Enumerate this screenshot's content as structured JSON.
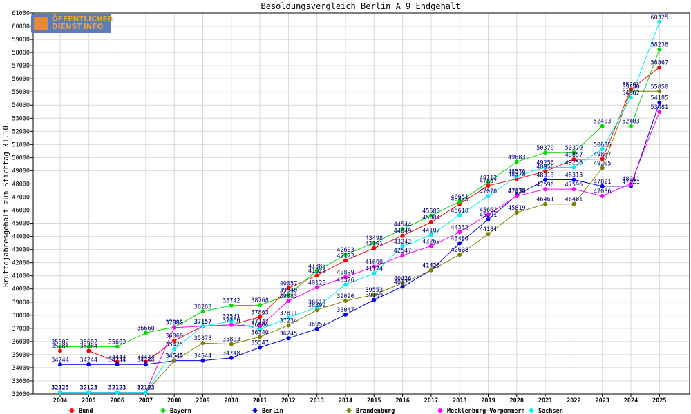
{
  "logo": {
    "line1": "ÖFFENTLICHER",
    "line2": "DIENST.INFO"
  },
  "chart_data": {
    "type": "line",
    "title": "Besoldungsvergleich Berlin A 9 Endgehalt",
    "xlabel": "",
    "ylabel": "Bruttojahresgehalt zum Stichtag 31.10.",
    "ylim": [
      32000,
      61000
    ],
    "y_ticks": [
      32000,
      33000,
      34000,
      35000,
      36000,
      37000,
      38000,
      39000,
      40000,
      41000,
      42000,
      43000,
      44000,
      45000,
      46000,
      47000,
      48000,
      49000,
      50000,
      51000,
      52000,
      53000,
      54000,
      55000,
      56000,
      57000,
      58000,
      59000,
      60000,
      61000
    ],
    "grid": true,
    "legend_position": "bottom",
    "categories": [
      "2004",
      "2005",
      "2006",
      "2007",
      "2008",
      "2009",
      "2010",
      "2011",
      "2012",
      "2013",
      "2014",
      "2015",
      "2016",
      "2017",
      "2018",
      "2019",
      "2020",
      "2021",
      "2022",
      "2023",
      "2024",
      "2025"
    ],
    "series": [
      {
        "name": "Bund",
        "color": "#ff0000",
        "values": [
          35284,
          35284,
          34444,
          34444,
          36060,
          37157,
          37266,
          37863,
          40057,
          41024,
          42173,
          43101,
          44049,
          45084,
          46475,
          47867,
          48378,
          48956,
          49857,
          49887,
          55201,
          56867
        ],
        "labels": [
          "35284",
          "35284",
          "34444",
          "34444",
          "36060",
          "37157",
          "37266",
          "37863",
          "40057",
          "41024",
          "42173",
          "43101",
          "44049",
          "45084",
          "46475",
          "47867",
          "48378",
          "48956",
          "49857",
          "49887",
          "55201",
          "56867"
        ]
      },
      {
        "name": "Bayern",
        "color": "#00dd00",
        "values": [
          35602,
          35602,
          35602,
          36660,
          37092,
          38283,
          38742,
          38768,
          39540,
          41383,
          42603,
          43498,
          44544,
          45580,
          46651,
          48112,
          49683,
          50379,
          50379,
          52403,
          52403,
          58238
        ],
        "labels": [
          "35602",
          "35602",
          "35602",
          "36660",
          "37092",
          "38283",
          "38742",
          "38768",
          "39540",
          "41383",
          "42603",
          "43498",
          "44544",
          "45580",
          "46651",
          "48112",
          "49683",
          "50379",
          "50379",
          "52403",
          "52403",
          "58238"
        ]
      },
      {
        "name": "Berlin",
        "color": "#0000ee",
        "values": [
          34244,
          34244,
          34244,
          34244,
          34544,
          34544,
          34748,
          35547,
          36245,
          36957,
          38047,
          39169,
          40177,
          41426,
          43486,
          45291,
          47138,
          48313,
          48313,
          47821,
          47821,
          54185
        ],
        "labels": [
          "34244",
          "34244",
          "34244",
          "34244",
          "34544",
          "34544",
          "34748",
          "35547",
          "36245",
          "36957",
          "38047",
          "39169",
          "40177",
          "41426",
          "43486",
          "45291",
          "47138",
          "48313",
          "48313",
          "47821",
          "47821",
          "54185"
        ]
      },
      {
        "name": "Brandenburg",
        "color": "#808000",
        "values": [
          32123,
          32123,
          32123,
          32123,
          34545,
          35878,
          35803,
          36340,
          37234,
          38399,
          39090,
          39553,
          40436,
          41426,
          42608,
          44184,
          45819,
          46461,
          46461,
          49205,
          55050,
          55050
        ],
        "labels": [
          "32123",
          "32123",
          "32123",
          "32123",
          "34545",
          "35878",
          "35803",
          "36340",
          "37234",
          "38399",
          "39090",
          "39553",
          "40436",
          "41426",
          "42608",
          "44184",
          "45819",
          "46461",
          "46461",
          "49205",
          "55050",
          "55050"
        ]
      },
      {
        "name": "Mecklenburg-Vorpommern",
        "color": "#ff00ff",
        "values": [
          32123,
          32123,
          32123,
          32123,
          37060,
          37157,
          37266,
          37147,
          39083,
          40123,
          40899,
          41690,
          42547,
          43269,
          44332,
          45662,
          47079,
          47596,
          47596,
          47086,
          48011,
          53481
        ],
        "labels": [
          "32123",
          "32123",
          "32123",
          "32123",
          "37060",
          "37157",
          "37266",
          "37147",
          "39083",
          "40123",
          "40899",
          "41690",
          "42547",
          "43269",
          "44332",
          "45662",
          "47079",
          "47596",
          "47596",
          "47086",
          "48011",
          "53481"
        ]
      },
      {
        "name": "Sachsen",
        "color": "#00eeff",
        "values": [
          32123,
          32123,
          32123,
          32123,
          35425,
          37157,
          37541,
          36906,
          37811,
          38613,
          40326,
          41174,
          43242,
          44107,
          45610,
          47070,
          48576,
          49256,
          49256,
          50635,
          54562,
          60325
        ],
        "labels": [
          "32123",
          "32123",
          "32123",
          "32123",
          "35425",
          "37157",
          "37541",
          "36906",
          "37811",
          "38613",
          "40326",
          "41174",
          "43242",
          "44107",
          "45610",
          "47070",
          "48576",
          "49256",
          "49256",
          "50635",
          "54562",
          "60325"
        ]
      }
    ]
  }
}
